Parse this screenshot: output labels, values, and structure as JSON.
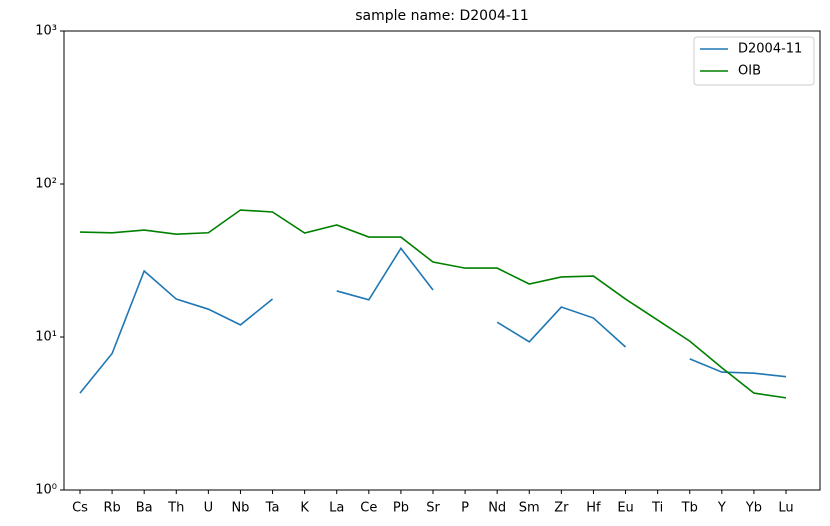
{
  "chart_data": {
    "type": "line",
    "title": "sample name: D2004-11",
    "categories": [
      "Cs",
      "Rb",
      "Ba",
      "Th",
      "U",
      "Nb",
      "Ta",
      "K",
      "La",
      "Ce",
      "Pb",
      "Sr",
      "P",
      "Nd",
      "Sm",
      "Zr",
      "Hf",
      "Eu",
      "Ti",
      "Tb",
      "Y",
      "Yb",
      "Lu"
    ],
    "series": [
      {
        "name": "D2004-11",
        "color": "#1f77b4",
        "values": [
          4.3,
          7.8,
          27,
          17.7,
          15.2,
          12,
          17.7,
          null,
          20,
          17.5,
          38,
          20.3,
          null,
          12.5,
          9.3,
          15.7,
          13.3,
          8.6,
          null,
          7.2,
          5.9,
          5.8,
          5.5
        ]
      },
      {
        "name": "OIB",
        "color": "#008000",
        "values": [
          48.5,
          48,
          50,
          47,
          48,
          67.6,
          65.6,
          47.8,
          54,
          45,
          45,
          30.9,
          28.2,
          28.2,
          22.2,
          24.7,
          25,
          17.7,
          12.9,
          9.4,
          6.3,
          4.3,
          4.0
        ]
      }
    ],
    "ylim": [
      1,
      1000
    ],
    "log_y": true,
    "yticks": [
      {
        "value": 1,
        "label": "10⁰"
      },
      {
        "value": 10,
        "label": "10¹"
      },
      {
        "value": 100,
        "label": "10²"
      },
      {
        "value": 1000,
        "label": "10³"
      }
    ],
    "legend": "upper right"
  }
}
